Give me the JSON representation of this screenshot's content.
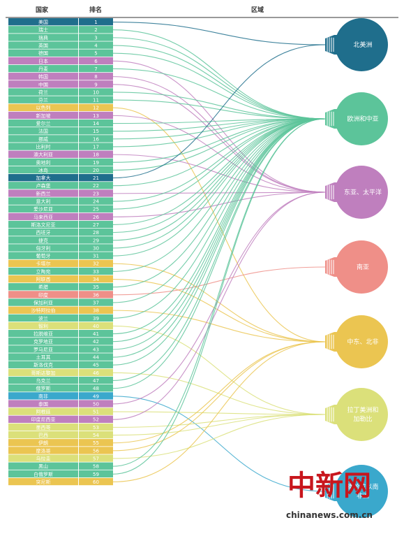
{
  "headers": {
    "country": "国家",
    "rank": "排名",
    "region": "区域"
  },
  "colors": {
    "北美洲": "#1f6e8c",
    "欧洲和中亚": "#5cc49a",
    "东亚、太平洋": "#bf7fbe",
    "南亚": "#ef8f88",
    "中东、北非": "#ebc551",
    "拉丁美洲和加勒比": "#dbe07a",
    "撒哈拉以南非洲": "#3aa8cc"
  },
  "regions": [
    {
      "key": "北美洲",
      "lines": [
        "北美洲"
      ],
      "icon": "lightbulb-icon"
    },
    {
      "key": "欧洲和中亚",
      "lines": [
        "欧洲和中亚"
      ],
      "icon": "lightbulb-icon"
    },
    {
      "key": "东亚、太平洋",
      "lines": [
        "东亚、太平洋"
      ],
      "icon": "lightbulb-icon"
    },
    {
      "key": "南亚",
      "lines": [
        "南亚"
      ],
      "icon": "lightbulb-icon"
    },
    {
      "key": "中东、北非",
      "lines": [
        "中东、北非"
      ],
      "icon": "lightbulb-icon"
    },
    {
      "key": "拉丁美洲和加勒比",
      "lines": [
        "拉丁美洲和",
        "加勒比"
      ],
      "icon": "lightbulb-icon"
    },
    {
      "key": "撒哈拉以南非洲",
      "lines": [
        "撒哈拉以南",
        "非洲"
      ],
      "icon": "lightbulb-icon"
    }
  ],
  "countries": [
    {
      "name": "美国",
      "rank": "1",
      "region": "北美洲"
    },
    {
      "name": "瑞士",
      "rank": "2",
      "region": "欧洲和中亚"
    },
    {
      "name": "瑞典",
      "rank": "3",
      "region": "欧洲和中亚"
    },
    {
      "name": "英国",
      "rank": "4",
      "region": "欧洲和中亚"
    },
    {
      "name": "德国",
      "rank": "5",
      "region": "欧洲和中亚"
    },
    {
      "name": "日本",
      "rank": "6",
      "region": "东亚、太平洋"
    },
    {
      "name": "丹麦",
      "rank": "7",
      "region": "欧洲和中亚"
    },
    {
      "name": "韩国",
      "rank": "8",
      "region": "东亚、太平洋"
    },
    {
      "name": "中国",
      "rank": "9",
      "region": "东亚、太平洋"
    },
    {
      "name": "荷兰",
      "rank": "10",
      "region": "欧洲和中亚"
    },
    {
      "name": "芬兰",
      "rank": "11",
      "region": "欧洲和中亚"
    },
    {
      "name": "以色列",
      "rank": "12",
      "region": "中东、北非"
    },
    {
      "name": "新加坡",
      "rank": "13",
      "region": "东亚、太平洋"
    },
    {
      "name": "爱尔兰",
      "rank": "14",
      "region": "欧洲和中亚"
    },
    {
      "name": "法国",
      "rank": "15",
      "region": "欧洲和中亚"
    },
    {
      "name": "挪威",
      "rank": "16",
      "region": "欧洲和中亚"
    },
    {
      "name": "比利时",
      "rank": "17",
      "region": "欧洲和中亚"
    },
    {
      "name": "澳大利亚",
      "rank": "18",
      "region": "东亚、太平洋"
    },
    {
      "name": "奥地利",
      "rank": "19",
      "region": "欧洲和中亚"
    },
    {
      "name": "冰岛",
      "rank": "20",
      "region": "欧洲和中亚"
    },
    {
      "name": "加拿大",
      "rank": "21",
      "region": "北美洲"
    },
    {
      "name": "卢森堡",
      "rank": "22",
      "region": "欧洲和中亚"
    },
    {
      "name": "新西兰",
      "rank": "23",
      "region": "东亚、太平洋"
    },
    {
      "name": "意大利",
      "rank": "24",
      "region": "欧洲和中亚"
    },
    {
      "name": "爱沙尼亚",
      "rank": "25",
      "region": "欧洲和中亚"
    },
    {
      "name": "马来西亚",
      "rank": "26",
      "region": "东亚、太平洋"
    },
    {
      "name": "斯洛文尼亚",
      "rank": "27",
      "region": "欧洲和中亚"
    },
    {
      "name": "西班牙",
      "rank": "28",
      "region": "欧洲和中亚"
    },
    {
      "name": "捷克",
      "rank": "29",
      "region": "欧洲和中亚"
    },
    {
      "name": "匈牙利",
      "rank": "30",
      "region": "欧洲和中亚"
    },
    {
      "name": "葡萄牙",
      "rank": "31",
      "region": "欧洲和中亚"
    },
    {
      "name": "卡塔尔",
      "rank": "32",
      "region": "中东、北非"
    },
    {
      "name": "立陶宛",
      "rank": "33",
      "region": "欧洲和中亚"
    },
    {
      "name": "阿联酋",
      "rank": "34",
      "region": "中东、北非"
    },
    {
      "name": "希腊",
      "rank": "35",
      "region": "欧洲和中亚"
    },
    {
      "name": "印度",
      "rank": "36",
      "region": "南亚"
    },
    {
      "name": "保加利亚",
      "rank": "37",
      "region": "欧洲和中亚"
    },
    {
      "name": "沙特阿拉伯",
      "rank": "38",
      "region": "中东、北非"
    },
    {
      "name": "波兰",
      "rank": "39",
      "region": "欧洲和中亚"
    },
    {
      "name": "智利",
      "rank": "40",
      "region": "拉丁美洲和加勒比"
    },
    {
      "name": "拉脱维亚",
      "rank": "41",
      "region": "欧洲和中亚"
    },
    {
      "name": "克罗地亚",
      "rank": "42",
      "region": "欧洲和中亚"
    },
    {
      "name": "罗马尼亚",
      "rank": "43",
      "region": "欧洲和中亚"
    },
    {
      "name": "土耳其",
      "rank": "44",
      "region": "欧洲和中亚"
    },
    {
      "name": "斯洛伐克",
      "rank": "45",
      "region": "欧洲和中亚"
    },
    {
      "name": "哥斯达黎加",
      "rank": "46",
      "region": "拉丁美洲和加勒比"
    },
    {
      "name": "乌克兰",
      "rank": "47",
      "region": "欧洲和中亚"
    },
    {
      "name": "俄罗斯",
      "rank": "48",
      "region": "欧洲和中亚"
    },
    {
      "name": "南非",
      "rank": "49",
      "region": "撒哈拉以南非洲"
    },
    {
      "name": "泰国",
      "rank": "50",
      "region": "东亚、太平洋"
    },
    {
      "name": "阿根廷",
      "rank": "51",
      "region": "拉丁美洲和加勒比"
    },
    {
      "name": "印度尼西亚",
      "rank": "52",
      "region": "东亚、太平洋"
    },
    {
      "name": "墨西哥",
      "rank": "53",
      "region": "拉丁美洲和加勒比"
    },
    {
      "name": "巴西",
      "rank": "54",
      "region": "拉丁美洲和加勒比"
    },
    {
      "name": "伊朗",
      "rank": "55",
      "region": "中东、北非"
    },
    {
      "name": "摩洛哥",
      "rank": "56",
      "region": "中东、北非"
    },
    {
      "name": "乌拉圭",
      "rank": "57",
      "region": "拉丁美洲和加勒比"
    },
    {
      "name": "黑山",
      "rank": "58",
      "region": "欧洲和中亚"
    },
    {
      "name": "白俄罗斯",
      "rank": "59",
      "region": "欧洲和中亚"
    },
    {
      "name": "突尼斯",
      "rank": "60",
      "region": "中东、北非"
    }
  ],
  "watermark": {
    "cn": "中新网",
    "en": "chinanews.com.cn"
  }
}
